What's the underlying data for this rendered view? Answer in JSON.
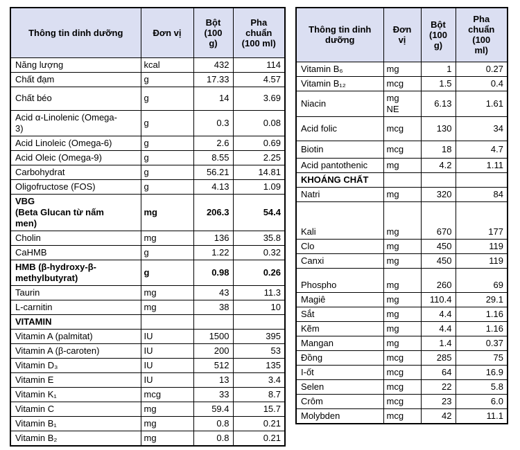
{
  "header_bg": "#DBDFF2",
  "tables": {
    "left": {
      "headers": {
        "info": "Thông tin dinh dưỡng",
        "unit": "Đơn vị",
        "powder": "Bột\n(100\ng)",
        "prepared": "Pha\nchuẩn\n(100 ml)"
      },
      "rows": [
        {
          "name": "Năng lượng",
          "unit": "kcal",
          "powder": "432",
          "prepared": "114",
          "bold": false
        },
        {
          "name": "Chất đạm",
          "unit": "g",
          "powder": "17.33",
          "prepared": "4.57",
          "bold": false
        },
        {
          "name": "Chất béo",
          "unit": "g",
          "powder": "14",
          "prepared": "3.69",
          "bold": false
        },
        {
          "name": "Acid α-Linolenic (Omega-\n3)",
          "unit": "g",
          "powder": "0.3",
          "prepared": "0.08",
          "bold": false
        },
        {
          "name": "Acid Linoleic (Omega-6)",
          "unit": "g",
          "powder": "2.6",
          "prepared": "0.69",
          "bold": false
        },
        {
          "name": "Acid Oleic (Omega-9)",
          "unit": "g",
          "powder": "8.55",
          "prepared": "2.25",
          "bold": false
        },
        {
          "name": "Carbohydrat",
          "unit": "g",
          "powder": "56.21",
          "prepared": "14.81",
          "bold": false
        },
        {
          "name": "Oligofructose (FOS)",
          "unit": "g",
          "powder": "4.13",
          "prepared": "1.09",
          "bold": false
        },
        {
          "name": "VBG\n(Beta Glucan từ nấm\nmen)",
          "unit": "mg",
          "powder": "206.3",
          "prepared": "54.4",
          "bold": true
        },
        {
          "name": "Cholin",
          "unit": "mg",
          "powder": "136",
          "prepared": "35.8",
          "bold": false
        },
        {
          "name": "CaHMB",
          "unit": "g",
          "powder": "1.22",
          "prepared": "0.32",
          "bold": false
        },
        {
          "name": "HMB (β-hydroxy-β-\nmethylbutyrat)",
          "unit": "g",
          "powder": "0.98",
          "prepared": "0.26",
          "bold": true
        },
        {
          "name": "Taurin",
          "unit": "mg",
          "powder": "43",
          "prepared": "11.3",
          "bold": false
        },
        {
          "name": "L-carnitin",
          "unit": "mg",
          "powder": "38",
          "prepared": "10",
          "bold": false
        },
        {
          "name": "VITAMIN",
          "unit": "",
          "powder": "",
          "prepared": "",
          "bold": true
        },
        {
          "name": "Vitamin A (palmitat)",
          "unit": "IU",
          "powder": "1500",
          "prepared": "395",
          "bold": false
        },
        {
          "name": "Vitamin A (β-caroten)",
          "unit": "IU",
          "powder": "200",
          "prepared": "53",
          "bold": false
        },
        {
          "name": "Vitamin D₃",
          "unit": "IU",
          "powder": "512",
          "prepared": "135",
          "bold": false
        },
        {
          "name": "Vitamin E",
          "unit": "IU",
          "powder": "13",
          "prepared": "3.4",
          "bold": false
        },
        {
          "name": "Vitamin K₁",
          "unit": "mcg",
          "powder": "33",
          "prepared": "8.7",
          "bold": false
        },
        {
          "name": "Vitamin C",
          "unit": "mg",
          "powder": "59.4",
          "prepared": "15.7",
          "bold": false
        },
        {
          "name": "Vitamin B₁",
          "unit": "mg",
          "powder": "0.8",
          "prepared": "0.21",
          "bold": false
        },
        {
          "name": "Vitamin B₂",
          "unit": "mg",
          "powder": "0.8",
          "prepared": "0.21",
          "bold": false
        }
      ]
    },
    "right": {
      "headers": {
        "info": "Thông tin dinh\ndưỡng",
        "unit": "Đơn\nvị",
        "powder": "Bột\n(100\ng)",
        "prepared": "Pha\nchuẩn\n(100\nml)"
      },
      "rows": [
        {
          "name": "Vitamin B₆",
          "unit": "mg",
          "powder": "1",
          "prepared": "0.27",
          "bold": false
        },
        {
          "name": "Vitamin B₁₂",
          "unit": "mcg",
          "powder": "1.5",
          "prepared": "0.4",
          "bold": false
        },
        {
          "name": "Niacin",
          "unit": "mg\nNE",
          "powder": "6.13",
          "prepared": "1.61",
          "bold": false
        },
        {
          "name": "Acid folic",
          "unit": "mcg",
          "powder": "130",
          "prepared": "34",
          "bold": false
        },
        {
          "name": "Biotin",
          "unit": "mcg",
          "powder": "18",
          "prepared": "4.7",
          "bold": false
        },
        {
          "name": "Acid pantothenic",
          "unit": "mg",
          "powder": "4.2",
          "prepared": "1.11",
          "bold": false
        },
        {
          "name": "KHOÁNG CHẤT",
          "unit": "",
          "powder": "",
          "prepared": "",
          "bold": true
        },
        {
          "name": "Natri",
          "unit": "mg",
          "powder": "320",
          "prepared": "84",
          "bold": false
        },
        {
          "name": "Kali",
          "unit": "mg",
          "powder": "670",
          "prepared": "177",
          "bold": false
        },
        {
          "name": "Clo",
          "unit": "mg",
          "powder": "450",
          "prepared": "119",
          "bold": false
        },
        {
          "name": "Canxi",
          "unit": "mg",
          "powder": "450",
          "prepared": "119",
          "bold": false
        },
        {
          "name": "Phospho",
          "unit": "mg",
          "powder": "260",
          "prepared": "69",
          "bold": false
        },
        {
          "name": "Magiê",
          "unit": "mg",
          "powder": "110.4",
          "prepared": "29.1",
          "bold": false
        },
        {
          "name": "Sắt",
          "unit": "mg",
          "powder": "4.4",
          "prepared": "1.16",
          "bold": false
        },
        {
          "name": "Kẽm",
          "unit": "mg",
          "powder": "4.4",
          "prepared": "1.16",
          "bold": false
        },
        {
          "name": "Mangan",
          "unit": "mg",
          "powder": "1.4",
          "prepared": "0.37",
          "bold": false
        },
        {
          "name": "Đồng",
          "unit": "mcg",
          "powder": "285",
          "prepared": "75",
          "bold": false
        },
        {
          "name": "I-ốt",
          "unit": "mcg",
          "powder": "64",
          "prepared": "16.9",
          "bold": false
        },
        {
          "name": "Selen",
          "unit": "mcg",
          "powder": "22",
          "prepared": "5.8",
          "bold": false
        },
        {
          "name": "Crôm",
          "unit": "mcg",
          "powder": "23",
          "prepared": "6.0",
          "bold": false
        },
        {
          "name": "Molybden",
          "unit": "mcg",
          "powder": "42",
          "prepared": "11.1",
          "bold": false
        }
      ]
    }
  }
}
